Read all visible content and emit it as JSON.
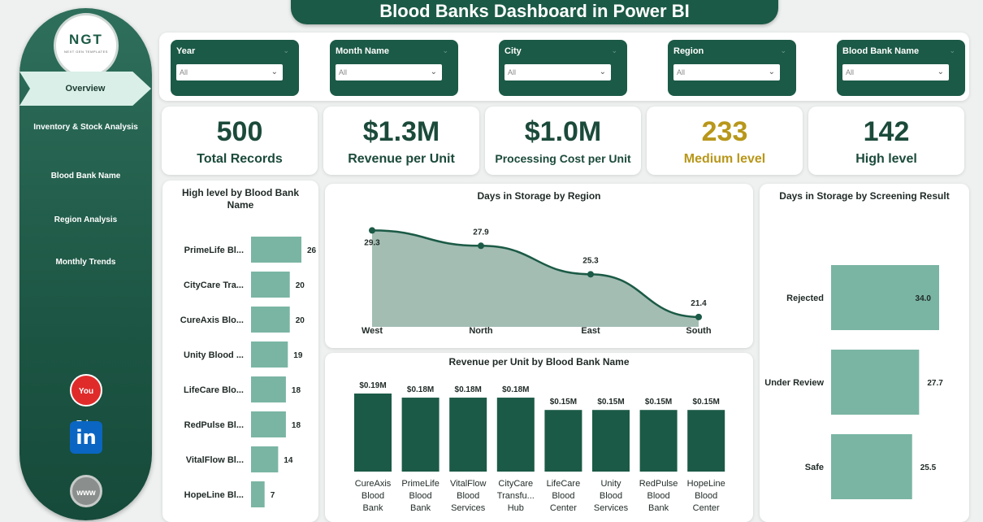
{
  "header": {
    "title": "Blood Banks Dashboard in Power BI"
  },
  "sidebar": {
    "logo_text": "NGT",
    "logo_sub": "NEXT GEN TEMPLATES",
    "active_item": "Overview",
    "items": [
      "Inventory & Stock Analysis",
      "Blood Bank Name",
      "Region Analysis",
      "Monthly Trends"
    ],
    "social": {
      "youtube": "You Tube",
      "linkedin": "in",
      "web": "www"
    }
  },
  "filters": [
    {
      "label": "Year",
      "value": "All"
    },
    {
      "label": "Month Name",
      "value": "All"
    },
    {
      "label": "City",
      "value": "All"
    },
    {
      "label": "Region",
      "value": "All"
    },
    {
      "label": "Blood Bank Name",
      "value": "All"
    }
  ],
  "kpis": [
    {
      "value": "500",
      "label": "Total Records"
    },
    {
      "value": "$1.3M",
      "label": "Revenue per Unit"
    },
    {
      "value": "$1.0M",
      "label": "Processing Cost per Unit"
    },
    {
      "value": "233",
      "label": "Medium level"
    },
    {
      "value": "142",
      "label": "High level"
    }
  ],
  "colors": {
    "primary": "#1b5a46",
    "bar_light": "#7ab5a3",
    "area_fill": "#a3bdb3",
    "gold": "#b8971a"
  },
  "chart_data": [
    {
      "type": "bar",
      "orientation": "horizontal",
      "title": "High level by Blood Bank Name",
      "categories": [
        "PrimeLife Bl...",
        "CityCare Tra...",
        "CureAxis Blo...",
        "Unity Blood ...",
        "LifeCare Blo...",
        "RedPulse Bl...",
        "VitalFlow Bl...",
        "HopeLine Bl..."
      ],
      "values": [
        26,
        20,
        20,
        19,
        18,
        18,
        14,
        7
      ]
    },
    {
      "type": "area",
      "title": "Days in Storage by Region",
      "categories": [
        "West",
        "North",
        "East",
        "South"
      ],
      "values": [
        29.3,
        27.9,
        25.3,
        21.4
      ],
      "labels": [
        "29.3",
        "27.9",
        "25.3",
        "21.4"
      ]
    },
    {
      "type": "bar",
      "orientation": "horizontal",
      "title": "Days in Storage by Screening Result",
      "categories": [
        "Rejected",
        "Under Review",
        "Safe"
      ],
      "values": [
        34.0,
        27.7,
        25.5
      ],
      "labels": [
        "34.0",
        "27.7",
        "25.5"
      ]
    },
    {
      "type": "bar",
      "orientation": "vertical",
      "title": "Revenue per Unit by Blood Bank Name",
      "categories": [
        [
          "CureAxis",
          "Blood",
          "Bank"
        ],
        [
          "PrimeLife",
          "Blood",
          "Bank"
        ],
        [
          "VitalFlow",
          "Blood",
          "Services"
        ],
        [
          "CityCare",
          "Transfu...",
          "Hub"
        ],
        [
          "LifeCare",
          "Blood",
          "Center"
        ],
        [
          "Unity",
          "Blood",
          "Services"
        ],
        [
          "RedPulse",
          "Blood",
          "Bank"
        ],
        [
          "HopeLine",
          "Blood",
          "Center"
        ]
      ],
      "values": [
        0.19,
        0.18,
        0.18,
        0.18,
        0.15,
        0.15,
        0.15,
        0.15
      ],
      "labels": [
        "$0.19M",
        "$0.18M",
        "$0.18M",
        "$0.18M",
        "$0.15M",
        "$0.15M",
        "$0.15M",
        "$0.15M"
      ]
    }
  ]
}
